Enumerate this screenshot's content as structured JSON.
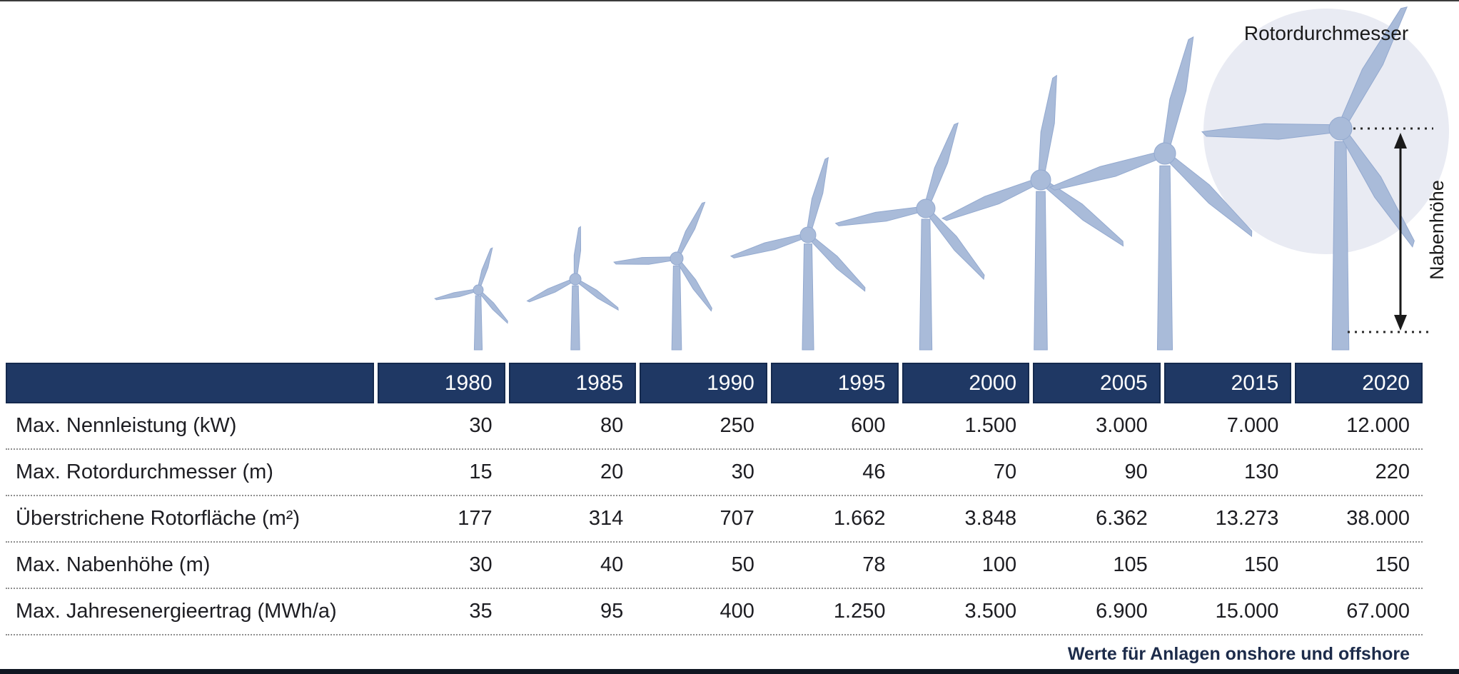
{
  "illustration": {
    "rotor_label": "Rotordurchmesser",
    "hub_label": "Nabenhöhe"
  },
  "table": {
    "years": [
      "1980",
      "1985",
      "1990",
      "1995",
      "2000",
      "2005",
      "2015",
      "2020"
    ],
    "rows": [
      {
        "label": "Max. Nennleistung (kW)",
        "values": [
          "30",
          "80",
          "250",
          "600",
          "1.500",
          "3.000",
          "7.000",
          "12.000"
        ]
      },
      {
        "label": "Max. Rotordurchmesser (m)",
        "values": [
          "15",
          "20",
          "30",
          "46",
          "70",
          "90",
          "130",
          "220"
        ]
      },
      {
        "label": "Überstrichene Rotorfläche (m²)",
        "values": [
          "177",
          "314",
          "707",
          "1.662",
          "3.848",
          "6.362",
          "13.273",
          "38.000"
        ]
      },
      {
        "label": "Max. Nabenhöhe (m)",
        "values": [
          "30",
          "40",
          "50",
          "78",
          "100",
          "105",
          "150",
          "150"
        ]
      },
      {
        "label": "Max. Jahresenergieertrag (MWh/a)",
        "values": [
          "35",
          "95",
          "400",
          "1.250",
          "3.500",
          "6.900",
          "15.000",
          "67.000"
        ]
      }
    ],
    "footnote": "Werte für Anlagen onshore und offshore"
  },
  "colors": {
    "header_navy": "#1f3864",
    "header_border": "#152a4e",
    "turbine_blue": "#a9bbd9",
    "turbine_stroke": "#93a9cf",
    "circle_bg": "#e9ebf3",
    "dotted_row": "#8f8f8f",
    "annotation_dark": "#1a1a1a",
    "footer_text": "#1c2b4a"
  },
  "chart_data": {
    "type": "table",
    "categories": [
      "1980",
      "1985",
      "1990",
      "1995",
      "2000",
      "2005",
      "2015",
      "2020"
    ],
    "series": [
      {
        "name": "Max. Nennleistung (kW)",
        "values": [
          30,
          80,
          250,
          600,
          1500,
          3000,
          7000,
          12000
        ]
      },
      {
        "name": "Max. Rotordurchmesser (m)",
        "values": [
          15,
          20,
          30,
          46,
          70,
          90,
          130,
          220
        ]
      },
      {
        "name": "Überstrichene Rotorfläche (m²)",
        "values": [
          177,
          314,
          707,
          1662,
          3848,
          6362,
          13273,
          38000
        ]
      },
      {
        "name": "Max. Nabenhöhe (m)",
        "values": [
          30,
          40,
          50,
          78,
          100,
          105,
          150,
          150
        ]
      },
      {
        "name": "Max. Jahresenergieertrag (MWh/a)",
        "values": [
          35,
          95,
          400,
          1250,
          3500,
          6900,
          15000,
          67000
        ]
      }
    ],
    "annotations": [
      "Rotordurchmesser",
      "Nabenhöhe"
    ],
    "note": "Werte für Anlagen onshore und offshore",
    "number_format": "de-DE (Punkt als Tausendertrennzeichen)"
  }
}
